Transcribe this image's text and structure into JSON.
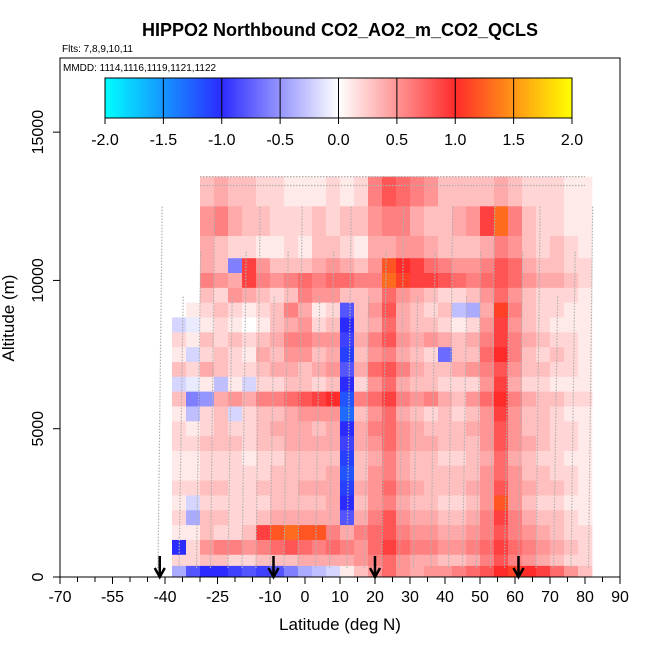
{
  "chart_data": {
    "type": "heatmap",
    "title": "HIPPO2 Northbound CO2_AO2_m_CO2_QCLS",
    "flights_label": "Flts: 7,8,9,10,11",
    "dates_label": "MMDD: 1114,1116,1119,1121,1122",
    "xlabel": "Latitude (deg N)",
    "ylabel": "Altitude (m)",
    "xlim": [
      -70,
      90
    ],
    "ylim": [
      0,
      17500
    ],
    "x_ticks": [
      -70,
      -55,
      -40,
      -25,
      -10,
      0,
      10,
      20,
      30,
      40,
      50,
      60,
      70,
      80,
      90
    ],
    "x_tick_labels": [
      "-70",
      "-55",
      "-40",
      "-25",
      "-10",
      "0",
      "10",
      "20",
      "30",
      "40",
      "50",
      "60",
      "70",
      "80",
      "90"
    ],
    "x_minor_ticks": [
      -65,
      -60,
      -50,
      -45,
      -35,
      -30,
      -20,
      -15,
      -5,
      5,
      15,
      25,
      35,
      45,
      55,
      65,
      75,
      85
    ],
    "y_ticks": [
      0,
      5000,
      10000,
      15000
    ],
    "y_tick_labels": [
      "0",
      "5000",
      "10000",
      "15000"
    ],
    "colorbar": {
      "min": -2.0,
      "max": 2.0,
      "ticks": [
        -2.0,
        -1.5,
        -1.0,
        -0.5,
        0.0,
        0.5,
        1.0,
        1.5,
        2.0
      ],
      "tick_labels": [
        "-2.0",
        "-1.5",
        "-1.0",
        "-0.5",
        "0.0",
        "0.5",
        "1.0",
        "1.5",
        "2.0"
      ],
      "colors": [
        "#00ffff",
        "#2b2bff",
        "#ffffff",
        "#ff2b2b",
        "#ffff00"
      ]
    },
    "arrow_latitudes": [
      -41.5,
      -9,
      20,
      61
    ],
    "lat_bins": [
      -42,
      -38,
      -34,
      -30,
      -26,
      -22,
      -18,
      -14,
      -10,
      -6,
      -2,
      2,
      6,
      10,
      14,
      18,
      22,
      26,
      30,
      34,
      38,
      42,
      46,
      50,
      54,
      58,
      62,
      66,
      70,
      74,
      78,
      82
    ],
    "alt_bins": [
      {
        "alt": 13000,
        "lat_range": [
          -31,
          80
        ],
        "values": [
          0,
          0,
          0,
          0.3,
          0.4,
          0.3,
          0.3,
          0.2,
          0.2,
          0.1,
          0.1,
          0.1,
          0.2,
          0.1,
          0.2,
          0.6,
          0.8,
          0.7,
          0.6,
          0.5,
          0.3,
          0.3,
          0.3,
          0.3,
          0.4,
          0.3,
          0.2,
          0.2,
          0.2,
          0.1,
          0.1,
          0
        ]
      },
      {
        "alt": 12000,
        "lat_range": [
          -31,
          80
        ],
        "values": [
          0,
          0,
          0,
          0.5,
          0.6,
          0.4,
          0.3,
          0.3,
          0.2,
          0.2,
          0.2,
          0.3,
          0.2,
          0.3,
          0.3,
          0.5,
          0.6,
          0.6,
          0.4,
          0.3,
          0.3,
          0.4,
          0.5,
          0.9,
          1.3,
          0.6,
          0.3,
          0.2,
          0.2,
          0.1,
          0.1,
          0
        ]
      },
      {
        "alt": 11000,
        "lat_range": [
          -31,
          80
        ],
        "values": [
          0,
          0,
          0,
          0.4,
          0.3,
          0.2,
          0.2,
          0.1,
          0.1,
          0.2,
          0.1,
          0.3,
          0.3,
          0.2,
          0.1,
          0.4,
          0.4,
          0.5,
          0.5,
          0.4,
          0.3,
          0.3,
          0.3,
          0.4,
          0.6,
          0.5,
          0.3,
          0.2,
          0.3,
          0.2,
          0.1,
          0
        ]
      },
      {
        "alt": 10500,
        "lat_range": [
          -31,
          80
        ],
        "values": [
          0,
          0,
          0,
          0.4,
          0.3,
          -0.6,
          0.9,
          0.5,
          0.3,
          0.3,
          0.3,
          0.4,
          0.5,
          0.4,
          0.3,
          0.5,
          1.2,
          1.0,
          0.9,
          0.7,
          0.6,
          0.5,
          0.5,
          0.6,
          0.8,
          0.7,
          0.4,
          0.3,
          0.3,
          0.2,
          0.2,
          0
        ]
      },
      {
        "alt": 10000,
        "lat_range": [
          -31,
          80
        ],
        "values": [
          0,
          0,
          0,
          0.6,
          0.5,
          0.4,
          0.9,
          0.6,
          0.5,
          0.6,
          0.7,
          0.6,
          0.7,
          0.7,
          0.6,
          0.6,
          1.3,
          1.1,
          0.9,
          0.9,
          0.8,
          0.7,
          0.6,
          0.7,
          0.8,
          0.7,
          0.5,
          0.4,
          0.4,
          0.3,
          0.2,
          0
        ]
      },
      {
        "alt": 9500,
        "lat_range": [
          -31,
          80
        ],
        "values": [
          0,
          0,
          0,
          0.3,
          0.2,
          0.5,
          0.4,
          0.3,
          0.2,
          0.3,
          0.6,
          0.5,
          0.5,
          0.3,
          0.3,
          0.4,
          0.7,
          0.5,
          0.4,
          0.3,
          0.2,
          0.2,
          0.3,
          0.5,
          0.7,
          0.5,
          0.3,
          0.2,
          0.2,
          0.2,
          0.1,
          0
        ]
      },
      {
        "alt": 9000,
        "lat_range": [
          -40,
          80
        ],
        "values": [
          0,
          0,
          0.1,
          0.2,
          0.3,
          0.2,
          0.1,
          0.2,
          0.3,
          0.6,
          0.4,
          0.1,
          0.2,
          -0.8,
          0.3,
          0.5,
          0.8,
          0.4,
          0.3,
          0.2,
          0.3,
          -0.3,
          -0.4,
          0.4,
          1.1,
          0.6,
          0.3,
          0.2,
          0.2,
          0.1,
          0.1,
          0
        ]
      },
      {
        "alt": 8500,
        "lat_range": [
          -40,
          80
        ],
        "values": [
          0,
          -0.2,
          -0.1,
          0.1,
          0.2,
          0.1,
          0.0,
          0.1,
          0.3,
          0.4,
          0.5,
          0.2,
          0.3,
          -1.0,
          0.3,
          0.4,
          0.7,
          0.4,
          0.3,
          0.3,
          0.2,
          0.1,
          0.2,
          0.5,
          0.9,
          0.5,
          0.3,
          0.2,
          0.1,
          0.1,
          0.1,
          0
        ]
      },
      {
        "alt": 8000,
        "lat_range": [
          -40,
          80
        ],
        "values": [
          0,
          0.2,
          0.1,
          0.3,
          0.2,
          0.3,
          0.2,
          0.3,
          0.4,
          0.6,
          0.6,
          0.5,
          0.5,
          -0.9,
          0.4,
          0.6,
          0.8,
          0.5,
          0.4,
          0.5,
          0.4,
          0.3,
          0.4,
          0.6,
          0.9,
          0.6,
          0.4,
          0.3,
          0.2,
          0.2,
          0.1,
          0
        ]
      },
      {
        "alt": 7500,
        "lat_range": [
          -40,
          80
        ],
        "values": [
          0,
          0.1,
          -0.2,
          0.2,
          0.3,
          0.2,
          0.1,
          0.4,
          0.3,
          0.5,
          0.5,
          0.3,
          0.4,
          -1.1,
          0.3,
          0.5,
          0.6,
          0.4,
          0.3,
          0.2,
          -0.7,
          0.3,
          0.3,
          0.7,
          1.0,
          0.6,
          0.3,
          0.2,
          0.3,
          0.2,
          0.1,
          0
        ]
      },
      {
        "alt": 7000,
        "lat_range": [
          -40,
          80
        ],
        "values": [
          0,
          0.3,
          0.2,
          0.4,
          0.3,
          0.2,
          0.2,
          0.3,
          0.4,
          0.4,
          0.3,
          0.4,
          0.5,
          -0.8,
          0.4,
          0.7,
          0.8,
          0.6,
          0.4,
          0.3,
          0.3,
          0.4,
          0.5,
          0.6,
          0.8,
          0.5,
          0.3,
          0.3,
          0.2,
          0.2,
          0.1,
          0
        ]
      },
      {
        "alt": 6500,
        "lat_range": [
          -40,
          80
        ],
        "values": [
          0,
          -0.2,
          -0.1,
          0.1,
          -0.3,
          0.1,
          -0.2,
          0.2,
          0.2,
          0.3,
          0.3,
          0.2,
          0.3,
          -1.0,
          0.2,
          0.5,
          0.7,
          0.4,
          0.3,
          0.3,
          0.2,
          0.2,
          0.2,
          0.5,
          0.9,
          0.4,
          0.2,
          0.2,
          0.1,
          0.1,
          0.1,
          0
        ]
      },
      {
        "alt": 6000,
        "lat_range": [
          -40,
          80
        ],
        "values": [
          0,
          0.3,
          -0.6,
          -0.5,
          0.4,
          0.5,
          0.4,
          0.6,
          0.6,
          0.7,
          0.8,
          0.9,
          1.0,
          -1.2,
          0.6,
          0.7,
          0.9,
          0.6,
          0.5,
          0.6,
          0.4,
          0.3,
          0.5,
          0.7,
          1.0,
          0.6,
          0.4,
          0.3,
          0.3,
          0.2,
          0.2,
          0
        ]
      },
      {
        "alt": 5500,
        "lat_range": [
          -40,
          80
        ],
        "values": [
          0,
          0.1,
          -0.3,
          0.2,
          0.3,
          -0.2,
          0.2,
          0.3,
          0.3,
          0.4,
          0.5,
          0.5,
          0.5,
          -1.3,
          0.3,
          0.5,
          0.7,
          0.4,
          0.3,
          0.2,
          0.3,
          0.2,
          0.3,
          0.5,
          0.9,
          0.5,
          0.3,
          0.3,
          0.2,
          0.1,
          0.1,
          0
        ]
      },
      {
        "alt": 5000,
        "lat_range": [
          -40,
          80
        ],
        "values": [
          0,
          0.2,
          0.1,
          0.2,
          0.3,
          0.2,
          0.2,
          0.3,
          0.4,
          0.4,
          0.4,
          0.3,
          0.4,
          -1.0,
          0.4,
          0.6,
          0.7,
          0.5,
          0.4,
          0.3,
          0.3,
          0.3,
          0.4,
          0.5,
          0.8,
          0.5,
          0.3,
          0.3,
          0.2,
          0.2,
          0.1,
          0
        ]
      },
      {
        "alt": 4500,
        "lat_range": [
          -40,
          80
        ],
        "values": [
          0,
          0.2,
          0.2,
          0.3,
          0.3,
          0.3,
          0.2,
          0.3,
          0.3,
          0.4,
          0.4,
          0.4,
          0.4,
          -0.9,
          0.4,
          0.5,
          0.7,
          0.5,
          0.4,
          0.4,
          0.3,
          0.3,
          0.3,
          0.5,
          0.8,
          0.5,
          0.4,
          0.3,
          0.2,
          0.2,
          0.1,
          0
        ]
      },
      {
        "alt": 4000,
        "lat_range": [
          -40,
          80
        ],
        "values": [
          0,
          0.1,
          0.1,
          0.2,
          0.2,
          0.2,
          0.1,
          0.2,
          0.2,
          0.3,
          0.3,
          0.3,
          0.3,
          -1.1,
          0.3,
          0.4,
          0.6,
          0.4,
          0.3,
          0.3,
          0.2,
          0.2,
          0.3,
          0.4,
          0.7,
          0.4,
          0.3,
          0.2,
          0.2,
          0.1,
          0.1,
          0
        ]
      },
      {
        "alt": 3500,
        "lat_range": [
          -40,
          80
        ],
        "values": [
          0,
          0.1,
          0.1,
          0.2,
          0.2,
          0.2,
          0.2,
          0.2,
          0.3,
          0.3,
          0.3,
          0.3,
          0.4,
          -1.2,
          0.3,
          0.5,
          0.6,
          0.4,
          0.3,
          0.3,
          0.3,
          0.3,
          0.3,
          0.5,
          0.7,
          0.5,
          0.3,
          0.3,
          0.2,
          0.2,
          0.1,
          0
        ]
      },
      {
        "alt": 3000,
        "lat_range": [
          -40,
          80
        ],
        "values": [
          0,
          0.2,
          0.2,
          0.3,
          0.3,
          0.2,
          0.2,
          0.3,
          0.3,
          0.3,
          0.4,
          0.4,
          0.4,
          -1.1,
          0.4,
          0.5,
          0.7,
          0.5,
          0.4,
          0.3,
          0.3,
          0.3,
          0.4,
          0.5,
          0.8,
          0.5,
          0.4,
          0.3,
          0.3,
          0.2,
          0.1,
          0
        ]
      },
      {
        "alt": 2500,
        "lat_range": [
          -40,
          80
        ],
        "values": [
          0,
          0.1,
          -0.2,
          0.2,
          0.2,
          0.2,
          0.2,
          0.2,
          0.3,
          0.3,
          0.3,
          0.3,
          0.4,
          -1.0,
          0.3,
          0.5,
          0.6,
          0.4,
          0.3,
          0.3,
          0.2,
          0.2,
          0.3,
          0.5,
          1.2,
          0.5,
          0.3,
          0.2,
          0.2,
          0.1,
          0.1,
          0
        ]
      },
      {
        "alt": 2000,
        "lat_range": [
          -40,
          80
        ],
        "values": [
          0,
          0.2,
          -0.4,
          0.3,
          0.3,
          0.2,
          0.2,
          0.3,
          0.4,
          0.4,
          0.4,
          0.4,
          0.4,
          -0.8,
          0.4,
          0.6,
          0.8,
          0.5,
          0.4,
          0.4,
          0.3,
          0.3,
          0.4,
          0.6,
          0.9,
          0.6,
          0.4,
          0.3,
          0.3,
          0.2,
          0.1,
          0
        ]
      },
      {
        "alt": 1500,
        "lat_range": [
          -40,
          80
        ],
        "values": [
          0,
          0.1,
          0.1,
          0.3,
          0.2,
          0.2,
          0.3,
          0.9,
          1.2,
          1.3,
          1.2,
          1.2,
          0.6,
          0.4,
          0.6,
          0.7,
          0.8,
          0.6,
          0.5,
          0.5,
          0.4,
          0.4,
          0.5,
          0.6,
          0.8,
          0.6,
          0.5,
          0.4,
          0.3,
          0.2,
          0.2,
          0
        ]
      },
      {
        "alt": 1000,
        "lat_range": [
          -40,
          80
        ],
        "values": [
          0,
          -1.0,
          0.2,
          0.5,
          0.6,
          0.6,
          0.5,
          0.6,
          0.7,
          0.8,
          0.7,
          0.6,
          0.7,
          0.6,
          0.5,
          0.7,
          0.9,
          0.7,
          0.6,
          0.6,
          0.5,
          0.5,
          0.6,
          0.7,
          0.9,
          0.7,
          0.6,
          0.5,
          0.4,
          0.3,
          0.2,
          0
        ]
      },
      {
        "alt": 500,
        "lat_range": [
          -40,
          80
        ],
        "values": [
          0,
          0.2,
          0.2,
          0.3,
          0.3,
          0.2,
          0.2,
          0.3,
          0.3,
          0.3,
          0.4,
          0.4,
          0.4,
          0.4,
          0.5,
          0.6,
          0.7,
          0.5,
          0.4,
          0.4,
          0.3,
          0.3,
          0.4,
          0.6,
          0.8,
          0.6,
          0.5,
          0.4,
          0.3,
          0.2,
          0.2,
          0
        ]
      },
      {
        "alt": 250,
        "lat_range": [
          -40,
          80
        ],
        "values": [
          0,
          -0.4,
          -0.8,
          -1.0,
          -1.0,
          -0.9,
          -0.8,
          -0.9,
          -0.8,
          -0.6,
          -0.4,
          -0.3,
          -0.2,
          0.1,
          0.3,
          0.5,
          0.7,
          0.5,
          0.4,
          0.5,
          0.5,
          0.6,
          0.7,
          0.8,
          1.0,
          1.1,
          1.0,
          0.9,
          0.7,
          0.5,
          0.3,
          0
        ]
      }
    ]
  }
}
